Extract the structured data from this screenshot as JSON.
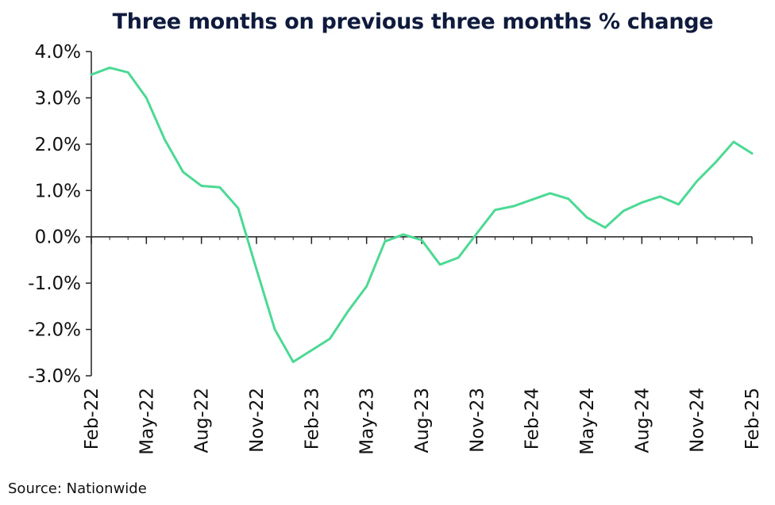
{
  "chart_data": {
    "type": "line",
    "title": "Three months on previous three months % change",
    "source": "Source: Nationwide",
    "xlabel": "",
    "ylabel": "",
    "ylim": [
      -3.0,
      4.0
    ],
    "yticks": [
      4.0,
      3.0,
      2.0,
      1.0,
      0.0,
      -1.0,
      -2.0,
      -3.0
    ],
    "ytick_labels": [
      "4.0%",
      "3.0%",
      "2.0%",
      "1.0%",
      "0.0%",
      "-1.0%",
      "-2.0%",
      "-3.0%"
    ],
    "xtick_labels": [
      "Feb-22",
      "May-22",
      "Aug-22",
      "Nov-22",
      "Feb-23",
      "May-23",
      "Aug-23",
      "Nov-23",
      "Feb-24",
      "May-24",
      "Aug-24",
      "Nov-24",
      "Feb-25"
    ],
    "grid": false,
    "legend": "none",
    "colors": {
      "line": "#4cd994",
      "axis": "#222222",
      "title": "#0f1b3d"
    },
    "x": [
      "Feb-22",
      "Mar-22",
      "Apr-22",
      "May-22",
      "Jun-22",
      "Jul-22",
      "Aug-22",
      "Sep-22",
      "Oct-22",
      "Nov-22",
      "Dec-22",
      "Jan-23",
      "Feb-23",
      "Mar-23",
      "Apr-23",
      "May-23",
      "Jun-23",
      "Jul-23",
      "Aug-23",
      "Sep-23",
      "Oct-23",
      "Nov-23",
      "Dec-23",
      "Jan-24",
      "Feb-24",
      "Mar-24",
      "Apr-24",
      "May-24",
      "Jun-24",
      "Jul-24",
      "Aug-24",
      "Sep-24",
      "Oct-24",
      "Nov-24",
      "Dec-24",
      "Jan-25",
      "Feb-25"
    ],
    "values": [
      3.5,
      3.65,
      3.55,
      3.0,
      2.1,
      1.4,
      1.1,
      1.07,
      0.62,
      -0.7,
      -2.0,
      -2.7,
      -2.45,
      -2.2,
      -1.6,
      -1.07,
      -0.1,
      0.05,
      -0.07,
      -0.6,
      -0.45,
      0.07,
      0.58,
      0.66,
      0.8,
      0.94,
      0.82,
      0.42,
      0.2,
      0.56,
      0.74,
      0.87,
      0.7,
      1.2,
      1.6,
      2.05,
      1.8
    ]
  }
}
